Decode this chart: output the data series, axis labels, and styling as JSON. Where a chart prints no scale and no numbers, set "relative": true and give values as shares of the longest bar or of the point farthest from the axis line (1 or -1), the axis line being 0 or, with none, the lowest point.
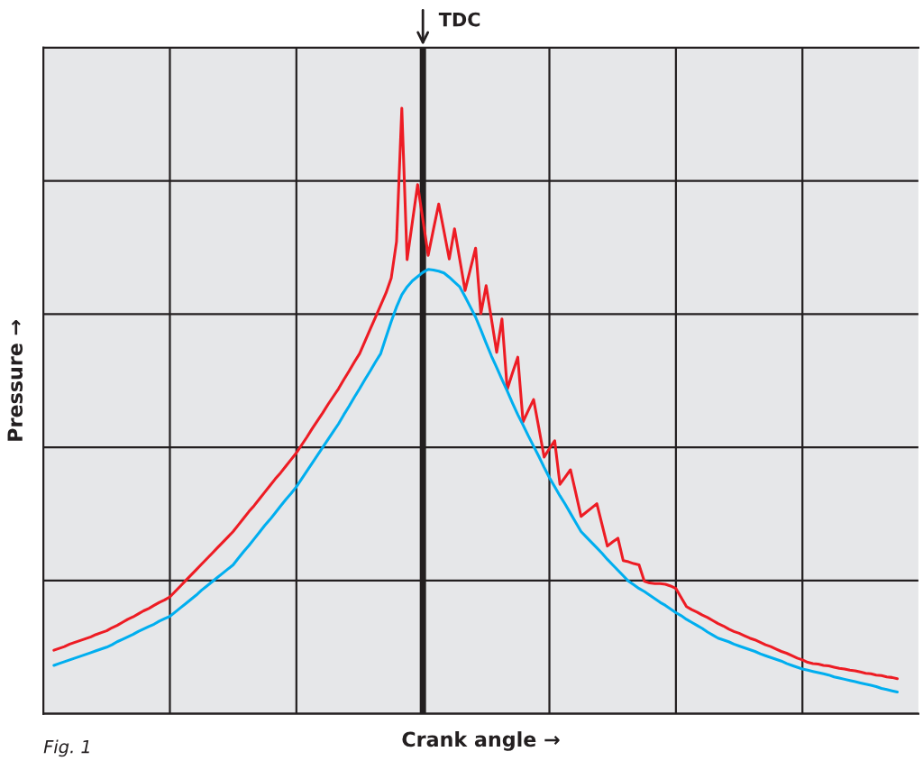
{
  "chart_data": {
    "type": "line",
    "relative": true,
    "xlabel": "Crank angle →",
    "ylabel": "Pressure →",
    "annotations": [
      "TDC",
      "Fig. 1"
    ],
    "categories": [
      null,
      null,
      null,
      null,
      null,
      null,
      null,
      null,
      null,
      null,
      null,
      null,
      null,
      null,
      null,
      null,
      null,
      null,
      null,
      null,
      null,
      null,
      null,
      null,
      null,
      null,
      null,
      null,
      null,
      null,
      null,
      null,
      null,
      null,
      null,
      null,
      null,
      null,
      null,
      null,
      null,
      null,
      null,
      null,
      null,
      null,
      null,
      null,
      null,
      null,
      null,
      null,
      null,
      null,
      null,
      null,
      null,
      null,
      null,
      null,
      null,
      null,
      null,
      null,
      null,
      null,
      null,
      null,
      null,
      null,
      null,
      null,
      null,
      null,
      null,
      null,
      null,
      null,
      null,
      null,
      null,
      null,
      null,
      null,
      null,
      null,
      null,
      null,
      null,
      null,
      null,
      null,
      null,
      null,
      null,
      null,
      null,
      null,
      null,
      null,
      null,
      null,
      null,
      null,
      null,
      null,
      null,
      null,
      null,
      null,
      null,
      null,
      null,
      null,
      null,
      null,
      null,
      null,
      null,
      null,
      null,
      null,
      null,
      null,
      null,
      null,
      null,
      null,
      null,
      null,
      null,
      null,
      null,
      null,
      null,
      null,
      null,
      null,
      null,
      null,
      null,
      null,
      null,
      null,
      null,
      null,
      null,
      null,
      null,
      null,
      null,
      null,
      null,
      null,
      null,
      null,
      null,
      null,
      null,
      null,
      null
    ],
    "grid": true,
    "series": [
      {
        "color": "#ed1c24",
        "values": [
          0.105,
          0.108,
          0.111,
          0.115,
          0.118,
          0.121,
          0.124,
          0.127,
          0.131,
          0.134,
          0.137,
          0.142,
          0.146,
          0.151,
          0.156,
          0.16,
          0.165,
          0.17,
          0.174,
          0.179,
          0.184,
          0.188,
          0.193,
          0.202,
          0.211,
          0.22,
          0.229,
          0.238,
          0.247,
          0.256,
          0.265,
          0.274,
          0.283,
          0.292,
          0.301,
          0.312,
          0.323,
          0.334,
          0.344,
          0.355,
          0.366,
          0.377,
          0.388,
          0.398,
          0.409,
          0.42,
          0.431,
          0.444,
          0.457,
          0.471,
          0.484,
          0.497,
          0.511,
          0.524,
          0.537,
          0.552,
          0.566,
          0.581,
          0.595,
          0.615,
          0.635,
          0.655,
          0.675,
          0.695,
          0.72,
          0.78,
          1.0,
          0.75,
          0.812,
          0.874,
          0.816,
          0.757,
          0.8,
          0.842,
          0.797,
          0.751,
          0.801,
          0.75,
          0.699,
          0.734,
          0.769,
          0.661,
          0.707,
          0.652,
          0.597,
          0.652,
          0.536,
          0.563,
          0.589,
          0.482,
          0.501,
          0.519,
          0.472,
          0.424,
          0.438,
          0.451,
          0.379,
          0.391,
          0.403,
          0.365,
          0.326,
          0.333,
          0.34,
          0.347,
          0.312,
          0.277,
          0.284,
          0.29,
          0.253,
          0.251,
          0.248,
          0.246,
          0.219,
          0.216,
          0.215,
          0.215,
          0.214,
          0.211,
          0.207,
          0.192,
          0.177,
          0.172,
          0.168,
          0.163,
          0.159,
          0.154,
          0.149,
          0.145,
          0.14,
          0.136,
          0.133,
          0.129,
          0.125,
          0.122,
          0.118,
          0.114,
          0.111,
          0.107,
          0.103,
          0.1,
          0.096,
          0.092,
          0.089,
          0.085,
          0.083,
          0.082,
          0.08,
          0.079,
          0.077,
          0.075,
          0.074,
          0.072,
          0.071,
          0.069,
          0.067,
          0.066,
          0.064,
          0.063,
          0.061,
          0.06,
          0.058
        ]
      },
      {
        "color": "#00aeef",
        "values": [
          0.08,
          0.083,
          0.086,
          0.089,
          0.092,
          0.095,
          0.098,
          0.101,
          0.104,
          0.107,
          0.11,
          0.114,
          0.119,
          0.123,
          0.127,
          0.131,
          0.136,
          0.14,
          0.144,
          0.148,
          0.153,
          0.157,
          0.161,
          0.168,
          0.175,
          0.182,
          0.189,
          0.196,
          0.204,
          0.211,
          0.218,
          0.225,
          0.232,
          0.239,
          0.246,
          0.257,
          0.268,
          0.278,
          0.289,
          0.3,
          0.311,
          0.321,
          0.332,
          0.343,
          0.354,
          0.364,
          0.375,
          0.388,
          0.401,
          0.414,
          0.427,
          0.44,
          0.453,
          0.466,
          0.479,
          0.494,
          0.508,
          0.523,
          0.537,
          0.552,
          0.566,
          0.581,
          0.595,
          0.622,
          0.648,
          0.672,
          0.692,
          0.705,
          0.715,
          0.722,
          0.729,
          0.734,
          0.733,
          0.731,
          0.728,
          0.721,
          0.713,
          0.705,
          0.689,
          0.672,
          0.655,
          0.634,
          0.612,
          0.591,
          0.572,
          0.552,
          0.533,
          0.513,
          0.494,
          0.477,
          0.459,
          0.442,
          0.425,
          0.407,
          0.39,
          0.375,
          0.36,
          0.346,
          0.331,
          0.316,
          0.301,
          0.292,
          0.283,
          0.274,
          0.265,
          0.255,
          0.246,
          0.237,
          0.228,
          0.219,
          0.213,
          0.207,
          0.202,
          0.196,
          0.19,
          0.184,
          0.179,
          0.173,
          0.167,
          0.162,
          0.156,
          0.151,
          0.146,
          0.141,
          0.135,
          0.13,
          0.125,
          0.122,
          0.119,
          0.115,
          0.112,
          0.109,
          0.106,
          0.103,
          0.099,
          0.096,
          0.093,
          0.09,
          0.087,
          0.083,
          0.08,
          0.077,
          0.074,
          0.072,
          0.07,
          0.068,
          0.066,
          0.064,
          0.061,
          0.059,
          0.057,
          0.055,
          0.053,
          0.051,
          0.049,
          0.047,
          0.045,
          0.042,
          0.04,
          0.038,
          0.036
        ]
      }
    ]
  }
}
